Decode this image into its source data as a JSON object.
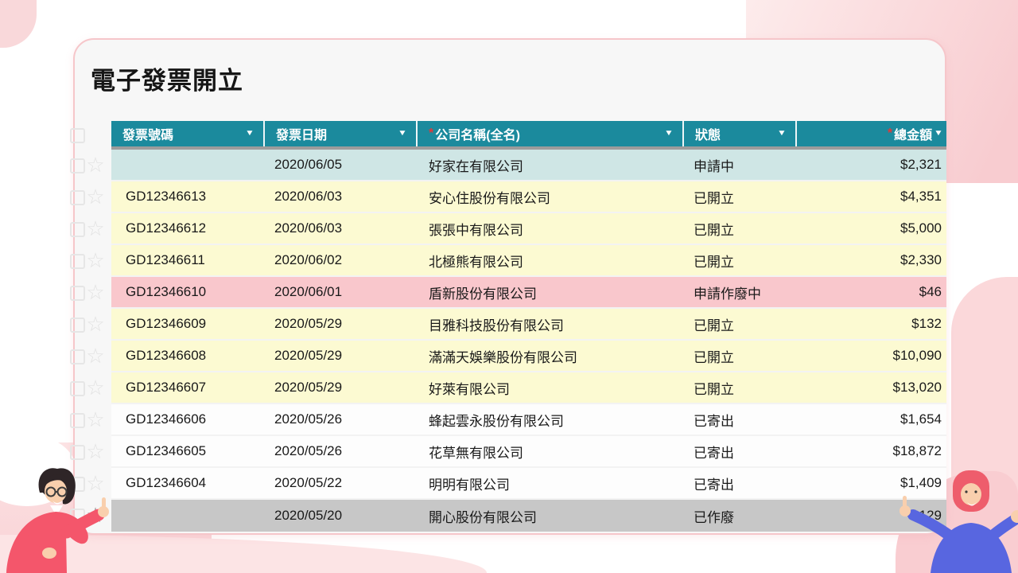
{
  "page": {
    "title": "電子發票開立"
  },
  "icons": {
    "sort_arrow": "▼",
    "star_outline": "☆",
    "required_mark": "*"
  },
  "colors": {
    "header_bg": "#1b8a9d",
    "header_text": "#ffffff",
    "required_mark": "#e03a3a",
    "card_border": "#f6c6ca",
    "row_state_colors": {
      "applying": "#cfe6e5",
      "issued": "#fcfad2",
      "void_pending": "#f9c7cc",
      "sent": "#fdfdfd",
      "voided": "#c7c7c7"
    }
  },
  "table": {
    "columns": [
      {
        "key": "invoice-number",
        "label": "發票號碼",
        "required": false,
        "sortable": true
      },
      {
        "key": "invoice-date",
        "label": "發票日期",
        "required": false,
        "sortable": true
      },
      {
        "key": "company-name",
        "label": "公司名稱(全名)",
        "required": true,
        "sortable": true
      },
      {
        "key": "status",
        "label": "狀態",
        "required": false,
        "sortable": true
      },
      {
        "key": "total-amount",
        "label": "總金額",
        "required": true,
        "sortable": true
      }
    ],
    "rows": [
      {
        "invoice_no": "",
        "date": "2020/06/05",
        "company": "好家在有限公司",
        "status": "申請中",
        "amount": "$2,321",
        "state": "applying"
      },
      {
        "invoice_no": "GD12346613",
        "date": "2020/06/03",
        "company": "安心住股份有限公司",
        "status": "已開立",
        "amount": "$4,351",
        "state": "issued"
      },
      {
        "invoice_no": "GD12346612",
        "date": "2020/06/03",
        "company": "張張中有限公司",
        "status": "已開立",
        "amount": "$5,000",
        "state": "issued"
      },
      {
        "invoice_no": "GD12346611",
        "date": "2020/06/02",
        "company": "北極熊有限公司",
        "status": "已開立",
        "amount": "$2,330",
        "state": "issued"
      },
      {
        "invoice_no": "GD12346610",
        "date": "2020/06/01",
        "company": "盾新股份有限公司",
        "status": "申請作廢中",
        "amount": "$46",
        "state": "void_pending"
      },
      {
        "invoice_no": "GD12346609",
        "date": "2020/05/29",
        "company": "目雅科技股份有限公司",
        "status": "已開立",
        "amount": "$132",
        "state": "issued"
      },
      {
        "invoice_no": "GD12346608",
        "date": "2020/05/29",
        "company": "滿滿天娛樂股份有限公司",
        "status": "已開立",
        "amount": "$10,090",
        "state": "issued"
      },
      {
        "invoice_no": "GD12346607",
        "date": "2020/05/29",
        "company": "好萊有限公司",
        "status": "已開立",
        "amount": "$13,020",
        "state": "issued"
      },
      {
        "invoice_no": "GD12346606",
        "date": "2020/05/26",
        "company": "蜂起雲永股份有限公司",
        "status": "已寄出",
        "amount": "$1,654",
        "state": "sent"
      },
      {
        "invoice_no": "GD12346605",
        "date": "2020/05/26",
        "company": "花草無有限公司",
        "status": "已寄出",
        "amount": "$18,872",
        "state": "sent"
      },
      {
        "invoice_no": "GD12346604",
        "date": "2020/05/22",
        "company": "明明有限公司",
        "status": "已寄出",
        "amount": "$1,409",
        "state": "sent"
      },
      {
        "invoice_no": "",
        "date": "2020/05/20",
        "company": "開心股份有限公司",
        "status": "已作廢",
        "amount": "$129",
        "state": "voided"
      }
    ]
  }
}
